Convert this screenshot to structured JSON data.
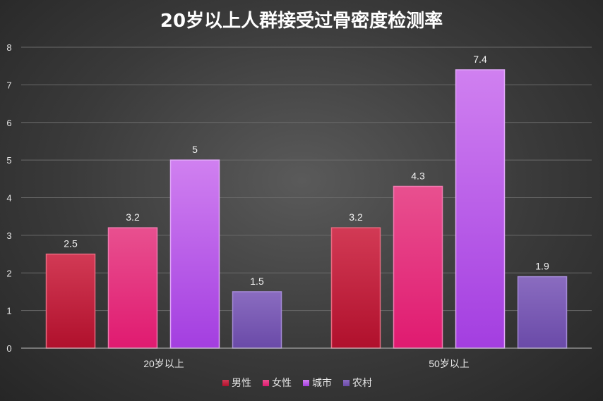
{
  "chart_data": {
    "type": "bar",
    "title": "20岁以上人群接受过骨密度检测率",
    "categories": [
      "20岁以上",
      "50岁以上"
    ],
    "series": [
      {
        "name": "男性",
        "values": [
          2.5,
          3.2
        ]
      },
      {
        "name": "女性",
        "values": [
          3.2,
          4.3
        ]
      },
      {
        "name": "城市",
        "values": [
          5,
          7.4
        ]
      },
      {
        "name": "农村",
        "values": [
          1.5,
          1.9
        ]
      }
    ],
    "ylim": [
      0,
      8
    ],
    "yticks": [
      0,
      1,
      2,
      3,
      4,
      5,
      6,
      7,
      8
    ],
    "grid": true,
    "legend_position": "bottom",
    "data_labels": true
  },
  "colors": {
    "男性": {
      "top": "#d23a55",
      "bottom": "#b0102c",
      "border": "#e86a80"
    },
    "女性": {
      "top": "#e8508f",
      "bottom": "#e01a70",
      "border": "#f07ab0"
    },
    "城市": {
      "top": "#d080f0",
      "bottom": "#a33ee0",
      "border": "#e0a8f8"
    },
    "农村": {
      "top": "#8a6cc0",
      "bottom": "#6a4aa8",
      "border": "#a48ad6"
    }
  }
}
